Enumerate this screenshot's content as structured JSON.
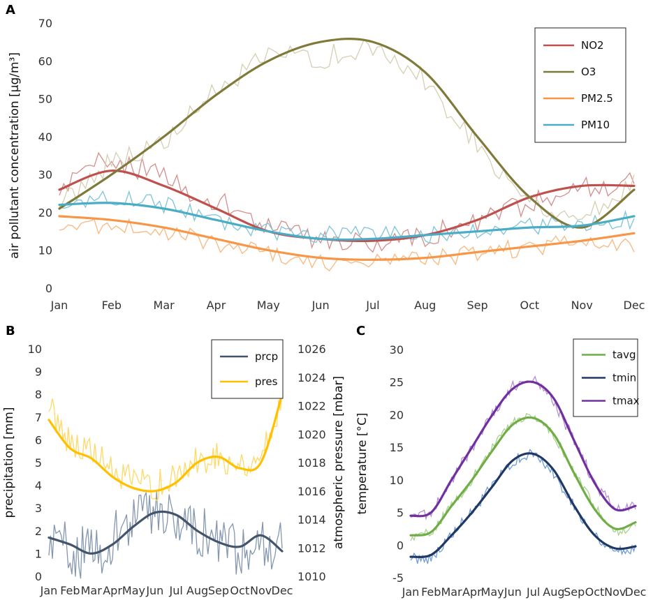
{
  "chart_data": [
    {
      "panel": "A",
      "type": "line",
      "ylabel": "air pollutant concentration [µg/m³]",
      "xlabel": "",
      "categories": [
        "Jan",
        "Feb",
        "Mar",
        "Apr",
        "May",
        "Jun",
        "Jul",
        "Aug",
        "Sep",
        "Oct",
        "Nov",
        "Dec"
      ],
      "ylim": [
        0,
        70
      ],
      "yticks": [
        "0",
        "10",
        "20",
        "30",
        "40",
        "50",
        "60",
        "70"
      ],
      "legend_position": "top-right",
      "series": [
        {
          "name": "NO2",
          "color": "#c0504d",
          "raw_color": "#d48e8c",
          "smooth": [
            26,
            31,
            27,
            21,
            15,
            13,
            12.5,
            14,
            18,
            24,
            27,
            27
          ],
          "raw": [
            26,
            35,
            29,
            23,
            16,
            13,
            12,
            14,
            17,
            23,
            27,
            28
          ]
        },
        {
          "name": "O3",
          "color": "#7f7a3a",
          "raw_color": "#d6cfb4",
          "smooth": [
            21,
            30,
            40,
            51,
            60,
            65,
            65,
            57,
            40,
            24,
            16,
            26
          ],
          "raw": [
            22,
            34,
            38,
            52,
            61,
            61,
            63,
            55,
            38,
            23,
            18,
            28
          ]
        },
        {
          "name": "PM2.5",
          "color": "#f79646",
          "raw_color": "#f8b880",
          "smooth": [
            19,
            18,
            16,
            13,
            10,
            8,
            7.5,
            8,
            9.5,
            11,
            12.5,
            14.5
          ],
          "raw": [
            16,
            17,
            15,
            12,
            9,
            7,
            7,
            8,
            9,
            11,
            12,
            11
          ]
        },
        {
          "name": "PM10",
          "color": "#4bacc6",
          "raw_color": "#7fc4d8",
          "smooth": [
            22,
            22.5,
            21,
            18,
            15,
            13,
            13,
            14,
            15,
            16,
            16.5,
            19
          ],
          "raw": [
            22,
            24,
            22,
            18,
            15,
            14,
            15,
            14,
            15,
            16,
            17,
            18
          ]
        }
      ]
    },
    {
      "panel": "B",
      "type": "line",
      "ylabel": "precipitation [mm]",
      "y2label": "atmospheric pressure [mbar]",
      "categories": [
        "Jan",
        "Feb",
        "Mar",
        "Apr",
        "May",
        "Jun",
        "Jul",
        "Aug",
        "Sep",
        "Oct",
        "Nov",
        "Dec"
      ],
      "ylim": [
        0,
        10
      ],
      "y2lim": [
        1010,
        1026
      ],
      "yticks": [
        "0",
        "1",
        "2",
        "3",
        "4",
        "5",
        "6",
        "7",
        "8",
        "9",
        "10"
      ],
      "y2ticks": [
        "1010",
        "1012",
        "1014",
        "1016",
        "1018",
        "1020",
        "1022",
        "1024",
        "1026"
      ],
      "legend_position": "top-right",
      "series": [
        {
          "name": "prcp",
          "axis": "left",
          "color": "#44546a",
          "raw_color": "#8497b0",
          "smooth": [
            1.7,
            1.4,
            1.0,
            1.4,
            2.2,
            2.8,
            2.7,
            2.0,
            1.5,
            1.3,
            1.8,
            1.1
          ],
          "raw": [
            1.5,
            1.2,
            1.0,
            1.6,
            2.5,
            3.0,
            2.6,
            2.1,
            1.4,
            1.2,
            1.6,
            1.4
          ]
        },
        {
          "name": "pres",
          "axis": "right",
          "color": "#ffc000",
          "raw_color": "#ffd966",
          "smooth": [
            1021,
            1019,
            1018.3,
            1017,
            1016.2,
            1016,
            1016.6,
            1018,
            1018.4,
            1017.6,
            1018,
            1022.8
          ],
          "raw": [
            1022,
            1019.5,
            1018.8,
            1017.3,
            1016.6,
            1016.4,
            1016.8,
            1018.2,
            1018.5,
            1017.8,
            1018.3,
            1022.5
          ]
        }
      ]
    },
    {
      "panel": "C",
      "type": "line",
      "ylabel": "temperature [°C]",
      "categories": [
        "Jan",
        "Feb",
        "Mar",
        "Apr",
        "May",
        "Jun",
        "Jul",
        "Aug",
        "Sep",
        "Oct",
        "Nov",
        "Dec"
      ],
      "ylim": [
        -5,
        30
      ],
      "yticks": [
        "-5",
        "0",
        "5",
        "10",
        "15",
        "20",
        "25",
        "30"
      ],
      "legend_position": "top-right",
      "series": [
        {
          "name": "tavg",
          "color": "#70ad47",
          "raw_color": "#a9d18e",
          "smooth": [
            1.5,
            2,
            6,
            10,
            14.5,
            18.5,
            19.5,
            17,
            11,
            5.5,
            2.5,
            3.5
          ],
          "raw": [
            1,
            2,
            6,
            10,
            15,
            19,
            20,
            17,
            11,
            6,
            2,
            3
          ]
        },
        {
          "name": "tmin",
          "color": "#203864",
          "raw_color": "#6f9bd8",
          "smooth": [
            -1.8,
            -1.5,
            1.5,
            5,
            9,
            13,
            14,
            11.5,
            6,
            1.5,
            -0.5,
            -0.2
          ],
          "raw": [
            -2,
            -2,
            1.5,
            5,
            9,
            13,
            14,
            11,
            6,
            1.5,
            -1,
            -0.5
          ]
        },
        {
          "name": "tmax",
          "color": "#7030a0",
          "raw_color": "#b48fd2",
          "smooth": [
            4.5,
            5,
            10,
            15,
            20,
            24,
            25,
            22.5,
            16,
            9.5,
            5.5,
            6
          ],
          "raw": [
            4.5,
            5,
            10,
            15,
            20,
            24.5,
            25.5,
            22,
            16,
            9.5,
            5.5,
            6
          ]
        }
      ]
    }
  ]
}
